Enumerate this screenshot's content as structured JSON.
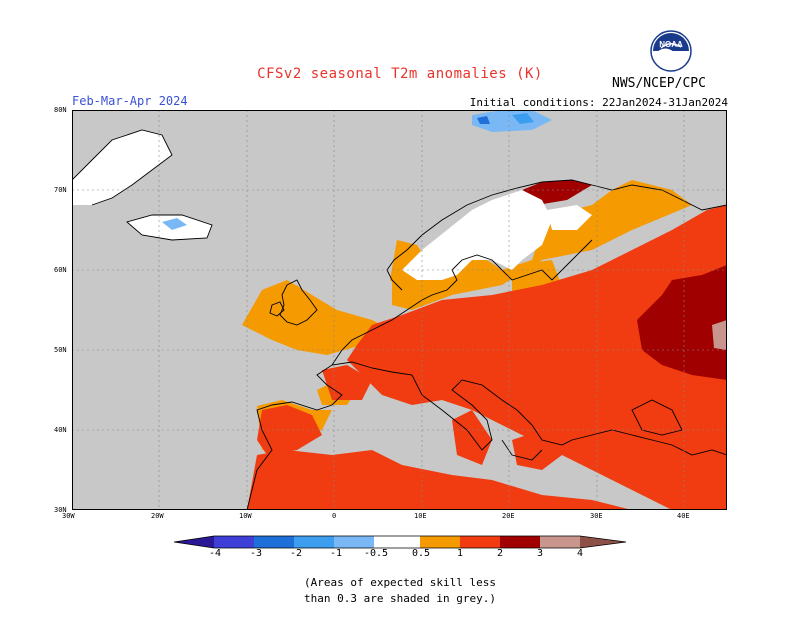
{
  "header": {
    "title": "CFSv2 seasonal T2m anomalies (K)",
    "period": "Feb-Mar-Apr 2024",
    "initial_conditions": "Initial conditions: 22Jan2024-31Jan2024",
    "agency": "NWS/NCEP/CPC",
    "logo_text": "NOAA"
  },
  "map": {
    "lon_ticks": [
      "30W",
      "20W",
      "10W",
      "0",
      "10E",
      "20E",
      "30E",
      "40E"
    ],
    "lat_ticks": [
      "80N",
      "70N",
      "60N",
      "50N",
      "40N",
      "30N"
    ],
    "background_color": "#c8c8c8",
    "region": "Europe"
  },
  "colorbar": {
    "labels": [
      "-4",
      "-3",
      "-2",
      "-1",
      "-0.5",
      "0.5",
      "1",
      "2",
      "3",
      "4"
    ],
    "colors": [
      "#2a1896",
      "#3f3fd8",
      "#1f6fd8",
      "#3d9ef0",
      "#7ab8f5",
      "#ffffff",
      "#f59a00",
      "#f03c10",
      "#a00000",
      "#c8968c",
      "#8c5046"
    ]
  },
  "note": {
    "line1": "(Areas of expected skill less",
    "line2": "than 0.3 are shaded in grey.)"
  }
}
